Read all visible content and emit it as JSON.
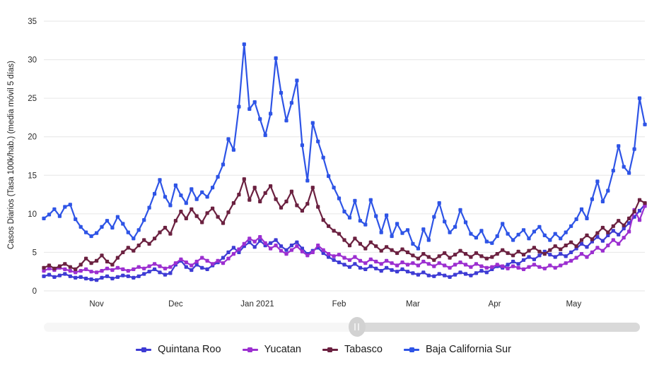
{
  "chart_data": {
    "type": "line",
    "title": "",
    "xlabel": "",
    "ylabel": "Casos Diarios (Tasa 100k/hab.) (media móvil 5 días)",
    "ylim": [
      0,
      35
    ],
    "yticks": [
      0,
      5,
      10,
      15,
      20,
      25,
      30,
      35
    ],
    "grid": "horizontal only",
    "legend_position": "bottom",
    "marker": "square",
    "x_range_days": [
      0,
      228
    ],
    "x_note": "daily series mid-Oct 2020 to late May 2021, sampled every 2 days",
    "xticks": [
      {
        "label": "Nov",
        "day": 20
      },
      {
        "label": "Dec",
        "day": 50
      },
      {
        "label": "Jan 2021",
        "day": 81
      },
      {
        "label": "Feb",
        "day": 112
      },
      {
        "label": "Mar",
        "day": 140
      },
      {
        "label": "Apr",
        "day": 171
      },
      {
        "label": "May",
        "day": 201
      }
    ],
    "series": [
      {
        "name": "Quintana Roo",
        "color": "#3e3bd4",
        "values": [
          1.9,
          2.1,
          1.8,
          2.0,
          2.2,
          1.9,
          1.7,
          1.8,
          1.6,
          1.5,
          1.4,
          1.7,
          1.9,
          1.6,
          1.8,
          2.0,
          1.9,
          1.7,
          1.9,
          2.2,
          2.5,
          2.8,
          2.4,
          2.1,
          2.3,
          3.4,
          3.9,
          3.1,
          2.7,
          3.4,
          3.0,
          2.8,
          3.3,
          3.7,
          4.3,
          5.0,
          5.6,
          5.0,
          5.8,
          6.3,
          5.7,
          6.5,
          5.9,
          6.2,
          6.6,
          5.8,
          5.3,
          5.9,
          6.3,
          5.5,
          4.8,
          5.2,
          5.6,
          4.9,
          4.4,
          4.0,
          3.7,
          3.4,
          3.1,
          3.5,
          3.0,
          2.8,
          3.2,
          2.9,
          2.6,
          3.0,
          2.7,
          2.5,
          2.8,
          2.5,
          2.3,
          2.1,
          2.4,
          2.0,
          1.9,
          2.2,
          2.0,
          1.8,
          2.1,
          2.4,
          2.2,
          2.0,
          2.3,
          2.6,
          2.4,
          2.8,
          3.2,
          3.0,
          3.4,
          3.8,
          3.5,
          4.0,
          4.4,
          4.1,
          4.6,
          5.1,
          4.7,
          4.4,
          4.8,
          4.5,
          5.0,
          5.5,
          6.1,
          5.7,
          6.4,
          7.0,
          6.5,
          7.2,
          7.8,
          7.3,
          8.1,
          8.8,
          9.6,
          10.4,
          11.2
        ]
      },
      {
        "name": "Yucatan",
        "color": "#9c2fd0",
        "values": [
          2.6,
          2.9,
          2.7,
          3.0,
          2.8,
          2.6,
          2.4,
          2.6,
          2.8,
          2.5,
          2.4,
          2.6,
          2.9,
          2.7,
          3.0,
          2.8,
          2.6,
          2.8,
          3.1,
          2.9,
          3.2,
          3.5,
          3.2,
          2.9,
          3.1,
          3.6,
          4.1,
          3.7,
          3.3,
          3.8,
          4.3,
          3.9,
          3.5,
          3.9,
          3.6,
          4.2,
          4.8,
          5.4,
          6.1,
          6.8,
          6.4,
          7.0,
          6.2,
          5.5,
          5.9,
          5.2,
          4.8,
          5.3,
          5.8,
          5.1,
          4.6,
          5.0,
          5.9,
          5.3,
          4.8,
          4.5,
          4.7,
          4.3,
          4.0,
          4.4,
          3.9,
          3.6,
          4.1,
          3.8,
          3.5,
          3.9,
          3.6,
          3.3,
          3.7,
          3.4,
          3.6,
          3.3,
          3.8,
          3.5,
          3.2,
          3.6,
          3.3,
          3.0,
          3.4,
          3.7,
          3.4,
          3.1,
          3.5,
          3.2,
          3.0,
          3.1,
          3.4,
          3.2,
          2.9,
          3.2,
          3.0,
          2.8,
          3.1,
          3.4,
          3.1,
          2.9,
          3.3,
          3.0,
          3.3,
          3.6,
          3.9,
          4.3,
          4.8,
          4.4,
          5.0,
          5.6,
          5.2,
          5.9,
          6.6,
          6.1,
          6.9,
          7.7,
          10.5,
          9.2,
          11.0
        ]
      },
      {
        "name": "Tabasco",
        "color": "#6b2140",
        "values": [
          3.0,
          3.3,
          2.9,
          3.2,
          3.5,
          3.1,
          2.8,
          3.4,
          4.2,
          3.6,
          3.9,
          4.6,
          3.8,
          3.4,
          4.3,
          5.0,
          5.6,
          5.2,
          5.9,
          6.6,
          6.1,
          6.8,
          7.6,
          8.2,
          7.4,
          9.1,
          10.3,
          9.4,
          10.6,
          9.7,
          8.9,
          10.1,
          10.7,
          9.6,
          8.8,
          10.2,
          11.4,
          12.5,
          14.5,
          11.8,
          13.4,
          11.6,
          12.7,
          13.6,
          11.9,
          10.8,
          11.6,
          12.9,
          11.1,
          10.4,
          11.3,
          13.4,
          10.9,
          9.2,
          8.4,
          7.8,
          7.4,
          6.6,
          5.9,
          6.8,
          6.1,
          5.5,
          6.3,
          5.8,
          5.2,
          5.7,
          5.3,
          4.9,
          5.4,
          5.0,
          4.6,
          4.2,
          4.8,
          4.4,
          4.0,
          4.5,
          4.9,
          4.3,
          4.7,
          5.2,
          4.8,
          4.4,
          4.9,
          4.5,
          4.2,
          4.4,
          4.8,
          5.3,
          4.9,
          4.6,
          5.1,
          4.7,
          5.2,
          5.6,
          5.1,
          4.8,
          5.3,
          5.8,
          5.4,
          5.9,
          6.3,
          5.8,
          6.6,
          7.2,
          6.7,
          7.5,
          8.2,
          7.6,
          8.4,
          9.1,
          8.5,
          9.4,
          10.3,
          11.8,
          11.4
        ]
      },
      {
        "name": "Baja California Sur",
        "color": "#2e54e6",
        "values": [
          9.4,
          9.9,
          10.6,
          9.7,
          10.9,
          11.2,
          9.3,
          8.3,
          7.6,
          7.1,
          7.5,
          8.3,
          9.1,
          8.2,
          9.6,
          8.7,
          7.6,
          6.8,
          7.9,
          9.2,
          10.8,
          12.6,
          14.4,
          12.2,
          11.1,
          13.7,
          12.4,
          11.4,
          13.2,
          11.9,
          12.8,
          12.2,
          13.4,
          14.8,
          16.4,
          19.7,
          18.3,
          23.9,
          32.0,
          23.6,
          24.5,
          22.3,
          20.2,
          23.0,
          30.2,
          25.7,
          22.1,
          24.4,
          27.3,
          18.9,
          14.3,
          21.8,
          19.4,
          17.3,
          14.9,
          13.4,
          12.0,
          10.3,
          9.5,
          11.7,
          9.1,
          8.6,
          11.8,
          9.7,
          7.6,
          9.8,
          7.1,
          8.7,
          7.5,
          7.9,
          6.1,
          5.5,
          8.0,
          6.6,
          9.6,
          11.4,
          9.0,
          7.6,
          8.3,
          10.5,
          8.9,
          7.4,
          6.9,
          7.8,
          6.4,
          6.2,
          7.1,
          8.7,
          7.4,
          6.6,
          7.3,
          7.9,
          6.8,
          7.7,
          8.3,
          7.2,
          6.6,
          7.4,
          6.8,
          7.6,
          8.4,
          9.3,
          10.6,
          9.4,
          11.9,
          14.2,
          11.6,
          13.0,
          15.6,
          18.8,
          16.1,
          15.3,
          18.4,
          25.0,
          21.6
        ]
      }
    ]
  },
  "slider": {
    "handle_pct": 52.5
  },
  "colors": {
    "gridline": "#e6e6e6",
    "tick_text": "#2a2a2a"
  }
}
